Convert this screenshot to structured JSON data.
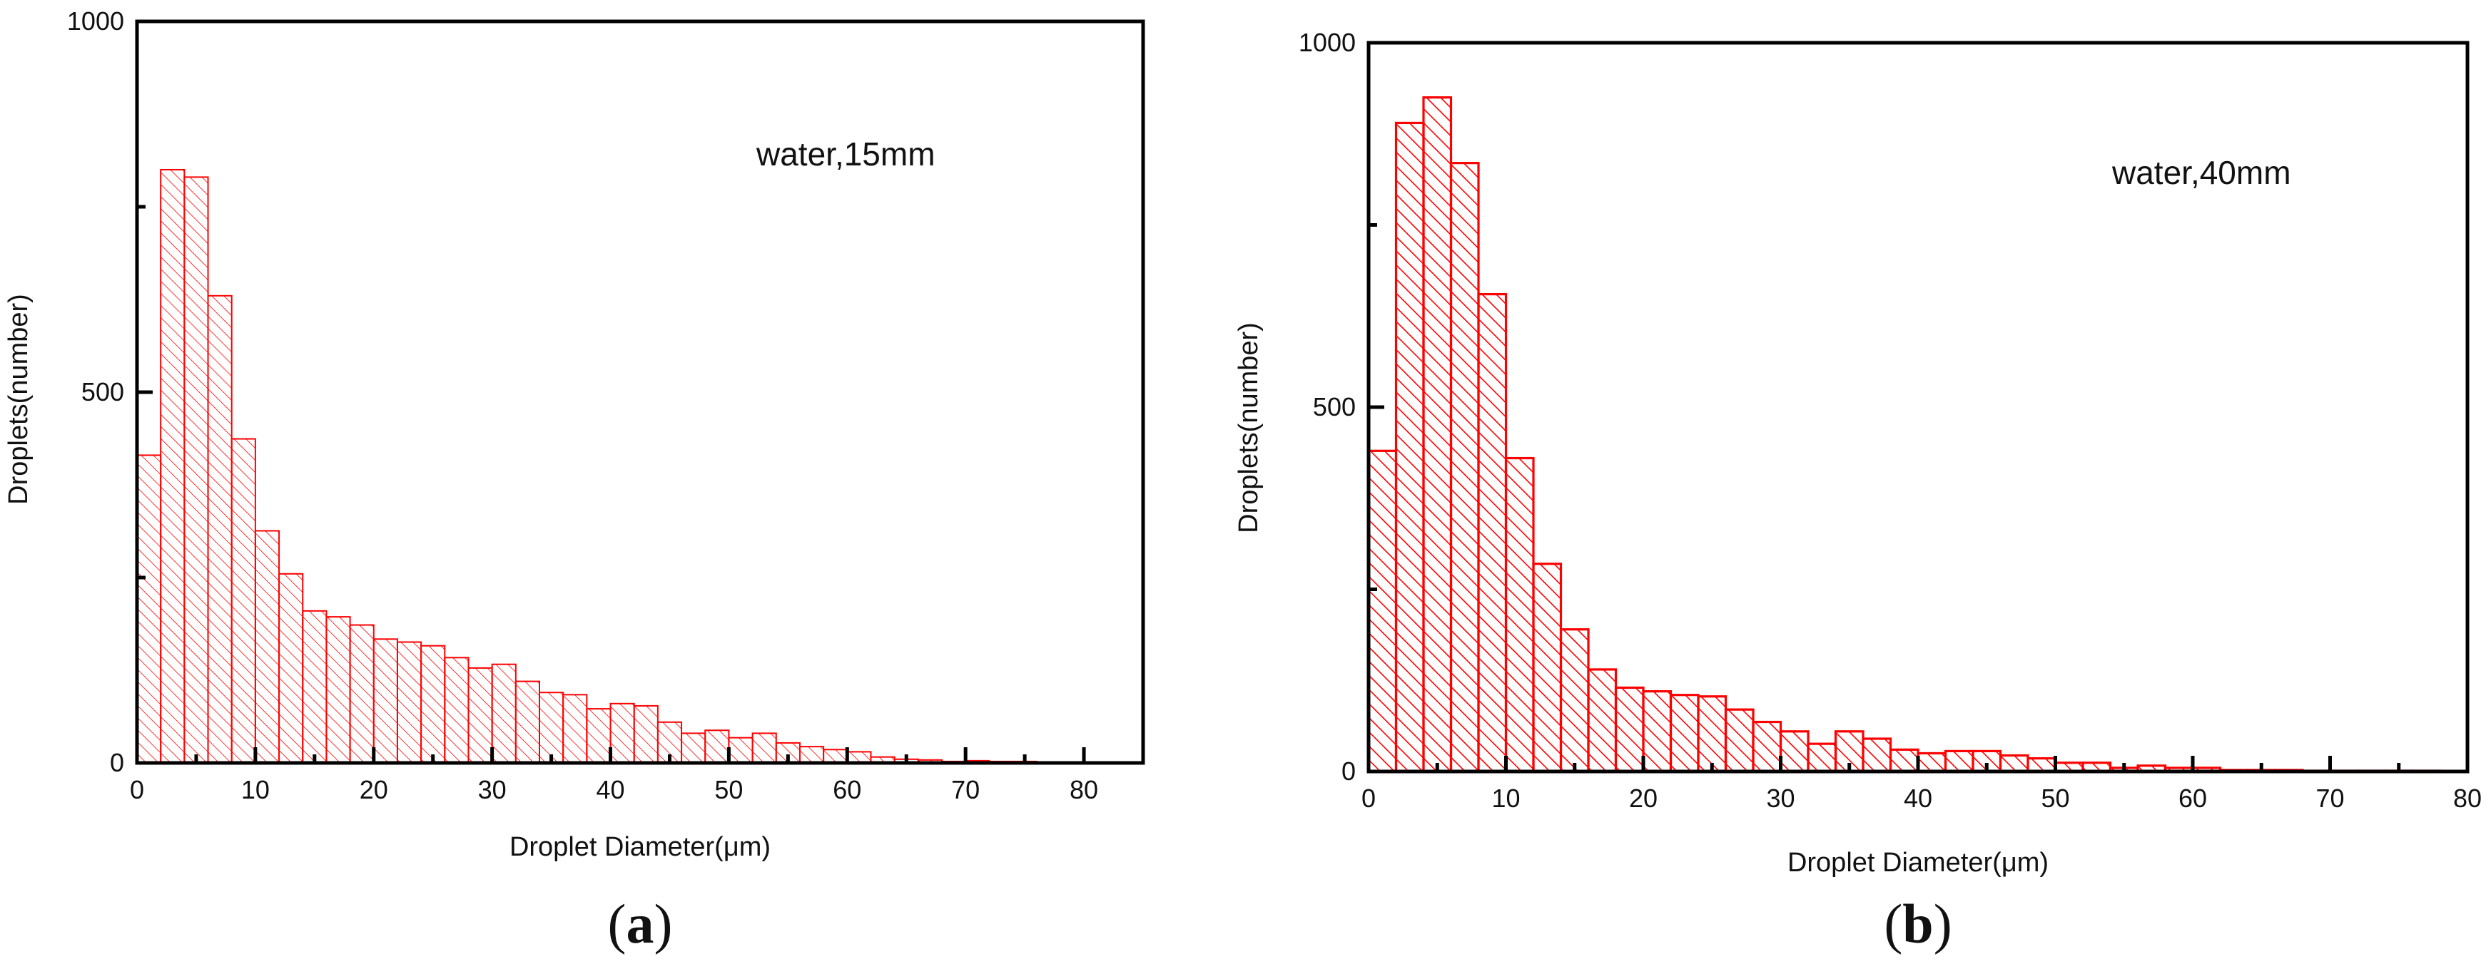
{
  "colors": {
    "bar": "#ff0000",
    "axis": "#000000",
    "background": "#ffffff"
  },
  "chart_data": [
    {
      "type": "bar",
      "panel": "a",
      "caption": "a",
      "annotation": "water,15mm",
      "xlabel": "Droplet Diameter(μm)",
      "ylabel": "Droplets(number)",
      "xlim": [
        0,
        85
      ],
      "ylim": [
        0,
        1000
      ],
      "xticks": [
        0,
        10,
        20,
        30,
        40,
        50,
        60,
        70,
        80
      ],
      "yticks": [
        0,
        500,
        1000
      ],
      "grid": false,
      "hatch": "light",
      "bin_width": 2,
      "x": [
        1,
        3,
        5,
        7,
        9,
        11,
        13,
        15,
        17,
        19,
        21,
        23,
        25,
        27,
        29,
        31,
        33,
        35,
        37,
        39,
        41,
        43,
        45,
        47,
        49,
        51,
        53,
        55,
        57,
        59,
        61,
        63,
        65,
        67,
        69,
        71,
        73,
        75,
        77,
        79
      ],
      "values": [
        415,
        800,
        790,
        630,
        437,
        313,
        255,
        205,
        197,
        186,
        167,
        163,
        158,
        142,
        128,
        133,
        110,
        95,
        92,
        73,
        80,
        77,
        55,
        40,
        44,
        34,
        40,
        27,
        22,
        18,
        15,
        8,
        5,
        4,
        2,
        3,
        2,
        2,
        1,
        1
      ]
    },
    {
      "type": "bar",
      "panel": "b",
      "caption": "b",
      "annotation": "water,40mm",
      "xlabel": "Droplet Diameter(μm)",
      "ylabel": "Droplets(number)",
      "xlim": [
        0,
        80
      ],
      "ylim": [
        0,
        1000
      ],
      "xticks": [
        0,
        10,
        20,
        30,
        40,
        50,
        60,
        70,
        80
      ],
      "yticks": [
        0,
        500,
        1000
      ],
      "grid": false,
      "hatch": "bold",
      "bin_width": 2,
      "x": [
        1,
        3,
        5,
        7,
        9,
        11,
        13,
        15,
        17,
        19,
        21,
        23,
        25,
        27,
        29,
        31,
        33,
        35,
        37,
        39,
        41,
        43,
        45,
        47,
        49,
        51,
        53,
        55,
        57,
        59,
        61,
        63,
        65,
        67,
        69,
        71,
        73,
        75,
        77,
        79
      ],
      "values": [
        440,
        890,
        925,
        835,
        655,
        430,
        285,
        195,
        140,
        115,
        110,
        105,
        103,
        85,
        68,
        55,
        38,
        55,
        45,
        30,
        25,
        28,
        28,
        22,
        18,
        12,
        12,
        5,
        8,
        5,
        5,
        2,
        2,
        2,
        1,
        1,
        1,
        1,
        1,
        0
      ]
    }
  ]
}
